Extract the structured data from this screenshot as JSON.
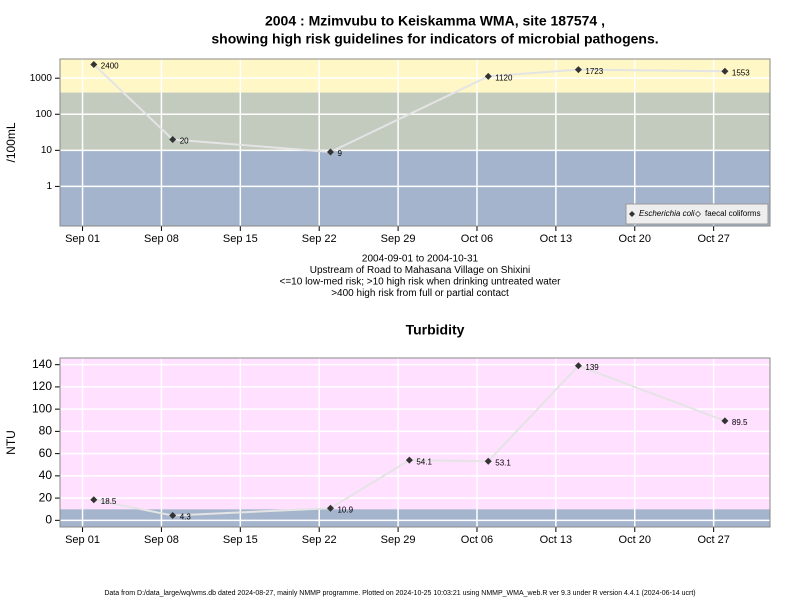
{
  "chart_data": [
    {
      "type": "line",
      "title": [
        "2004 : Mzimvubu to Keiskamma WMA, site 187574 ,",
        "showing high risk guidelines for indicators of microbial pathogens."
      ],
      "ylabel": "/100mL",
      "notes": [
        "2004-09-01 to 2004-10-31",
        "Upstream of Road to Mahasana Village on Shixini",
        "<=10 low-med risk; >10 high risk when drinking untreated water",
        ">400 high risk from full or partial contact"
      ],
      "log_y": true,
      "xlim": [
        "2004-08-30",
        "2004-11-01"
      ],
      "xticks": [
        {
          "value": "2004-09-01",
          "label": "Sep 01"
        },
        {
          "value": "2004-09-08",
          "label": "Sep 08"
        },
        {
          "value": "2004-09-15",
          "label": "Sep 15"
        },
        {
          "value": "2004-09-22",
          "label": "Sep 22"
        },
        {
          "value": "2004-09-29",
          "label": "Sep 29"
        },
        {
          "value": "2004-10-06",
          "label": "Oct 06"
        },
        {
          "value": "2004-10-13",
          "label": "Oct 13"
        },
        {
          "value": "2004-10-20",
          "label": "Oct 20"
        },
        {
          "value": "2004-10-27",
          "label": "Oct 27"
        }
      ],
      "ylim": [
        0.08,
        3400
      ],
      "yticks": [
        1,
        10,
        100,
        1000
      ],
      "grid": true,
      "band_breaks": [
        10,
        400
      ],
      "band_colors": [
        "#a3b4cc",
        "#c3cbbf",
        "#fff7c6"
      ],
      "legend": "bottom-right",
      "x": [
        "2004-09-02",
        "2004-09-09",
        "2004-09-23",
        "2004-10-07",
        "2004-10-15",
        "2004-10-28"
      ],
      "series": [
        {
          "name": "Escherichia coli",
          "color": "#333333",
          "line_color": "#e4e4e4",
          "values": [
            2400,
            20,
            9,
            1120,
            1723,
            1553
          ]
        },
        {
          "name": "faecal coliforms",
          "color": "#333333",
          "line_color": "#e4e4e4",
          "values": [
            null,
            null,
            null,
            null,
            null,
            null
          ]
        }
      ]
    },
    {
      "type": "line",
      "title": [
        "Turbidity"
      ],
      "ylabel": "NTU",
      "log_y": false,
      "xlim": [
        "2004-08-30",
        "2004-11-01"
      ],
      "xticks": [
        {
          "value": "2004-09-01",
          "label": "Sep 01"
        },
        {
          "value": "2004-09-08",
          "label": "Sep 08"
        },
        {
          "value": "2004-09-15",
          "label": "Sep 15"
        },
        {
          "value": "2004-09-22",
          "label": "Sep 22"
        },
        {
          "value": "2004-09-29",
          "label": "Sep 29"
        },
        {
          "value": "2004-10-06",
          "label": "Oct 06"
        },
        {
          "value": "2004-10-13",
          "label": "Oct 13"
        },
        {
          "value": "2004-10-20",
          "label": "Oct 20"
        },
        {
          "value": "2004-10-27",
          "label": "Oct 27"
        }
      ],
      "ylim": [
        -6,
        146
      ],
      "yticks": [
        0,
        20,
        40,
        60,
        80,
        100,
        120,
        140
      ],
      "grid": true,
      "band_breaks": [
        10
      ],
      "band_colors": [
        "#a3b4cc",
        "#ffe0ff"
      ],
      "x": [
        "2004-09-02",
        "2004-09-09",
        "2004-09-23",
        "2004-09-30",
        "2004-10-07",
        "2004-10-15",
        "2004-10-28"
      ],
      "series": [
        {
          "name": "Turbidity",
          "color": "#333333",
          "line_color": "#e4e4e4",
          "values": [
            18.5,
            4.3,
            10.9,
            54.1,
            53.1,
            139,
            89.5
          ]
        }
      ]
    }
  ],
  "footer": "Data from D:/data_large/wq/wms.db dated 2024-08-27, mainly NMMP programme. Plotted on 2024-10-25 10:03:21 using NMMP_WMA_web.R ver 9.3 under R version 4.4.1 (2024-06-14 ucrt)"
}
